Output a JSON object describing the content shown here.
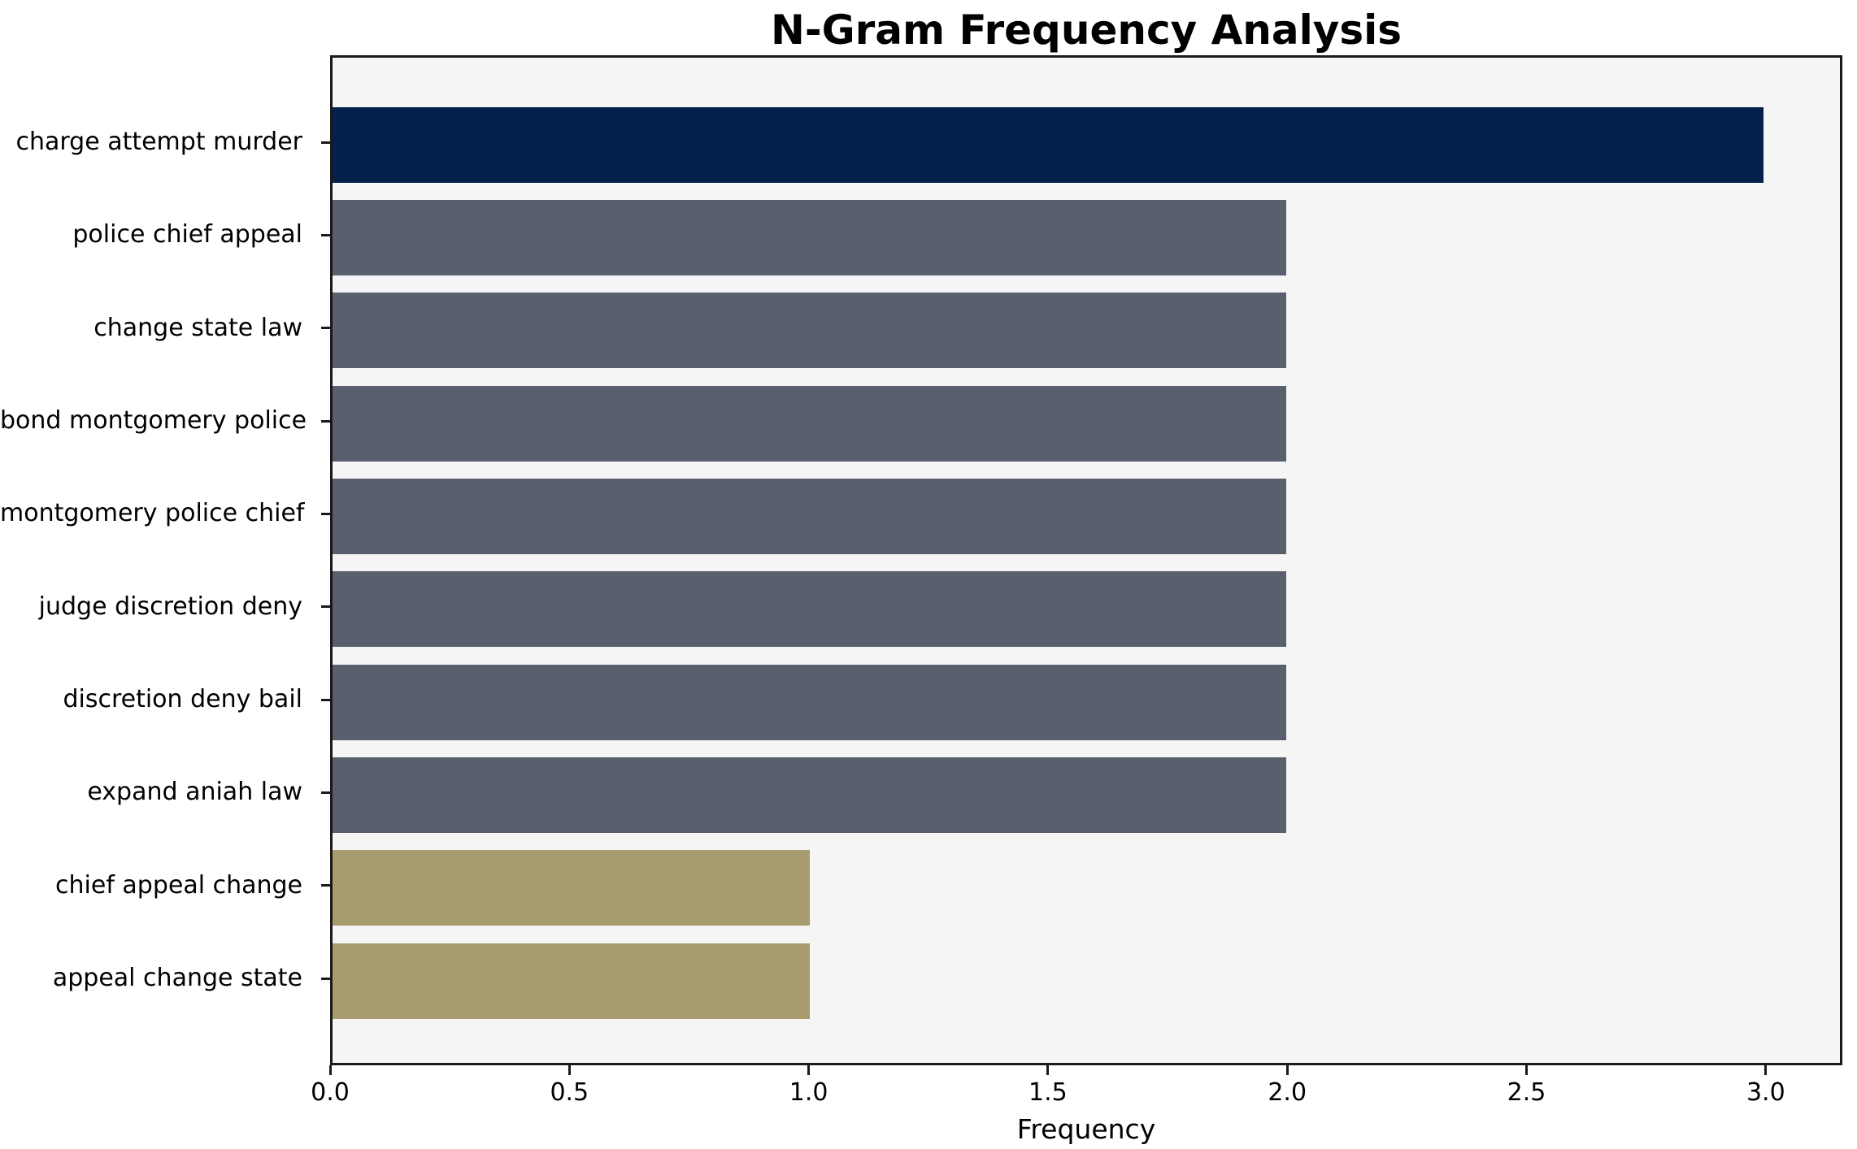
{
  "chart_data": {
    "type": "bar",
    "orientation": "horizontal",
    "title": "N-Gram Frequency Analysis",
    "xlabel": "Frequency",
    "categories": [
      "charge attempt murder",
      "police chief appeal",
      "change state law",
      "bond montgomery police",
      "montgomery police chief",
      "judge discretion deny",
      "discretion deny bail",
      "expand aniah law",
      "chief appeal change",
      "appeal change state"
    ],
    "values": [
      3,
      2,
      2,
      2,
      2,
      2,
      2,
      2,
      1,
      1
    ],
    "bar_colors": [
      "#05204a",
      "#5a5f6e",
      "#5a5f6e",
      "#5a5f6e",
      "#5a5f6e",
      "#5a5f6e",
      "#5a5f6e",
      "#5a5f6e",
      "#a69c6e",
      "#a69c6e"
    ],
    "xlim": [
      0,
      3.16
    ],
    "xticks": [
      0.0,
      0.5,
      1.0,
      1.5,
      2.0,
      2.5,
      3.0
    ],
    "xtick_labels": [
      "0.0",
      "0.5",
      "1.0",
      "1.5",
      "2.0",
      "2.5",
      "3.0"
    ],
    "plot_background": "#f5f5f5",
    "figure_background": "#ffffff",
    "axis_color": "#1a1a1a",
    "grid": "off",
    "legend": "none"
  }
}
